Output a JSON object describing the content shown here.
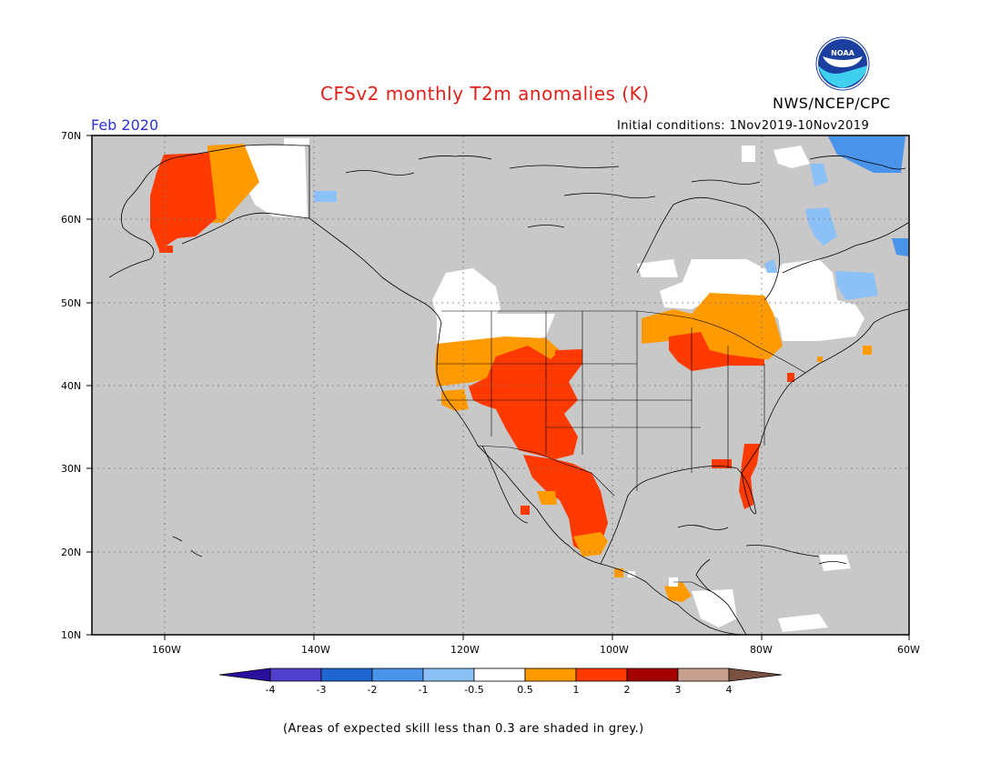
{
  "header": {
    "title": "CFSv2 monthly T2m anomalies (K)",
    "agency": "NWS/NCEP/CPC",
    "valid_month": "Feb 2020",
    "initial_conditions": "Initial conditions: 1Nov2019-10Nov2019",
    "logo_text": "NOAA"
  },
  "axes": {
    "lat_labels": [
      "70N",
      "60N",
      "50N",
      "40N",
      "30N",
      "20N",
      "10N"
    ],
    "lon_labels": [
      "160W",
      "140W",
      "120W",
      "100W",
      "80W",
      "60W"
    ]
  },
  "colorbar": {
    "labels": [
      "-4",
      "-3",
      "-2",
      "-1",
      "-0.5",
      "0.5",
      "1",
      "2",
      "3",
      "4"
    ],
    "colors": [
      "#2a0f9e",
      "#4f3fcc",
      "#1f66d3",
      "#4a93ea",
      "#8cc1f7",
      "#ffffff",
      "#ff9a00",
      "#ff3a00",
      "#a30000",
      "#c8a090",
      "#7a5040"
    ]
  },
  "legend_note": "(Areas of expected skill less than 0.3 are shaded in grey.)",
  "map_colors": {
    "grey": "#c8c8c8",
    "white": "#ffffff",
    "orange": "#ff9a00",
    "red": "#ff3a00",
    "lightblue": "#8cc1f7",
    "medblue": "#4a93ea"
  }
}
